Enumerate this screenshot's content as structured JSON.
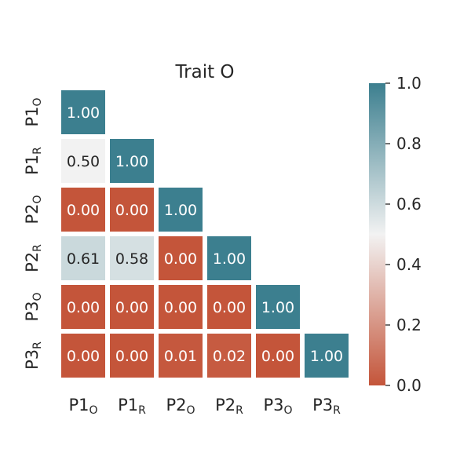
{
  "chart_data": {
    "type": "heatmap",
    "title": "Trait O",
    "rows": [
      {
        "base": "P1",
        "sub": "O"
      },
      {
        "base": "P1",
        "sub": "R"
      },
      {
        "base": "P2",
        "sub": "O"
      },
      {
        "base": "P2",
        "sub": "R"
      },
      {
        "base": "P3",
        "sub": "O"
      },
      {
        "base": "P3",
        "sub": "R"
      }
    ],
    "columns": [
      {
        "base": "P1",
        "sub": "O"
      },
      {
        "base": "P1",
        "sub": "R"
      },
      {
        "base": "P2",
        "sub": "O"
      },
      {
        "base": "P2",
        "sub": "R"
      },
      {
        "base": "P3",
        "sub": "O"
      },
      {
        "base": "P3",
        "sub": "R"
      }
    ],
    "values": [
      [
        1.0,
        null,
        null,
        null,
        null,
        null
      ],
      [
        0.5,
        1.0,
        null,
        null,
        null,
        null
      ],
      [
        0.0,
        0.0,
        1.0,
        null,
        null,
        null
      ],
      [
        0.61,
        0.58,
        0.0,
        1.0,
        null,
        null
      ],
      [
        0.0,
        0.0,
        0.0,
        0.0,
        1.0,
        null
      ],
      [
        0.0,
        0.0,
        0.01,
        0.02,
        0.0,
        1.0
      ]
    ],
    "cell_labels": [
      [
        "1.00",
        "",
        "",
        "",
        "",
        ""
      ],
      [
        "0.50",
        "1.00",
        "",
        "",
        "",
        ""
      ],
      [
        "0.00",
        "0.00",
        "1.00",
        "",
        "",
        ""
      ],
      [
        "0.61",
        "0.58",
        "0.00",
        "1.00",
        "",
        ""
      ],
      [
        "0.00",
        "0.00",
        "0.00",
        "0.00",
        "1.00",
        ""
      ],
      [
        "0.00",
        "0.00",
        "0.01",
        "0.02",
        "0.00",
        "1.00"
      ]
    ],
    "mask": "upper-triangle",
    "colorbar": {
      "range": [
        0.0,
        1.0
      ],
      "ticks": [
        0.0,
        0.2,
        0.4,
        0.6,
        0.8,
        1.0
      ],
      "tick_labels": [
        "0.0",
        "0.2",
        "0.4",
        "0.6",
        "0.8",
        "1.0"
      ],
      "placement": "right"
    },
    "colors": {
      "low": "#c4553a",
      "mid": "#f2f2f2",
      "high": "#3c7f8f",
      "text_dark": "#262626",
      "text_light": "#ffffff"
    },
    "grid": false
  }
}
